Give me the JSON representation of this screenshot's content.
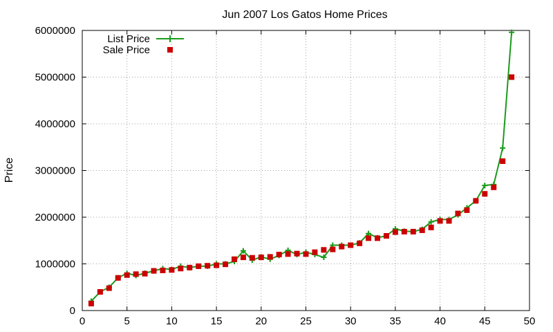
{
  "chart_data": {
    "type": "line",
    "title": "Jun 2007 Los Gatos Home Prices",
    "xlabel": "",
    "ylabel": "Price",
    "xlim": [
      0,
      50
    ],
    "ylim": [
      0,
      6000000
    ],
    "xticks": [
      0,
      5,
      10,
      15,
      20,
      25,
      30,
      35,
      40,
      45,
      50
    ],
    "yticks": [
      0,
      1000000,
      2000000,
      3000000,
      4000000,
      5000000,
      6000000
    ],
    "grid": true,
    "legend_position": "top-left",
    "series": [
      {
        "name": "List Price",
        "style": "line+cross",
        "color": "#1a9a1a",
        "x": [
          1,
          2,
          3,
          4,
          5,
          6,
          7,
          8,
          9,
          10,
          11,
          12,
          13,
          14,
          15,
          16,
          17,
          18,
          19,
          20,
          21,
          22,
          23,
          24,
          25,
          26,
          27,
          28,
          29,
          30,
          31,
          32,
          33,
          34,
          35,
          36,
          37,
          38,
          39,
          40,
          41,
          42,
          43,
          44,
          45,
          46,
          47,
          48
        ],
        "y": [
          200000,
          400000,
          500000,
          700000,
          800000,
          750000,
          800000,
          850000,
          900000,
          880000,
          950000,
          920000,
          950000,
          950000,
          1000000,
          1000000,
          1050000,
          1280000,
          1080000,
          1150000,
          1100000,
          1180000,
          1290000,
          1200000,
          1250000,
          1200000,
          1140000,
          1400000,
          1400000,
          1400000,
          1450000,
          1650000,
          1560000,
          1600000,
          1750000,
          1700000,
          1690000,
          1740000,
          1900000,
          1950000,
          1950000,
          2050000,
          2200000,
          2350000,
          2680000,
          2700000,
          3480000,
          5960000
        ]
      },
      {
        "name": "Sale Price",
        "style": "square",
        "color": "#cc0000",
        "x": [
          1,
          2,
          3,
          4,
          5,
          6,
          7,
          8,
          9,
          10,
          11,
          12,
          13,
          14,
          15,
          16,
          17,
          18,
          19,
          20,
          21,
          22,
          23,
          24,
          25,
          26,
          27,
          28,
          29,
          30,
          31,
          32,
          33,
          34,
          35,
          36,
          37,
          38,
          39,
          40,
          41,
          42,
          43,
          44,
          45,
          46,
          47,
          48
        ],
        "y": [
          150000,
          400000,
          480000,
          700000,
          760000,
          780000,
          790000,
          850000,
          860000,
          870000,
          900000,
          920000,
          950000,
          960000,
          970000,
          990000,
          1100000,
          1140000,
          1130000,
          1140000,
          1150000,
          1200000,
          1210000,
          1220000,
          1210000,
          1250000,
          1300000,
          1310000,
          1370000,
          1400000,
          1440000,
          1550000,
          1550000,
          1600000,
          1680000,
          1690000,
          1690000,
          1720000,
          1780000,
          1920000,
          1920000,
          2080000,
          2150000,
          2350000,
          2500000,
          2640000,
          3200000,
          5000000
        ]
      }
    ]
  }
}
